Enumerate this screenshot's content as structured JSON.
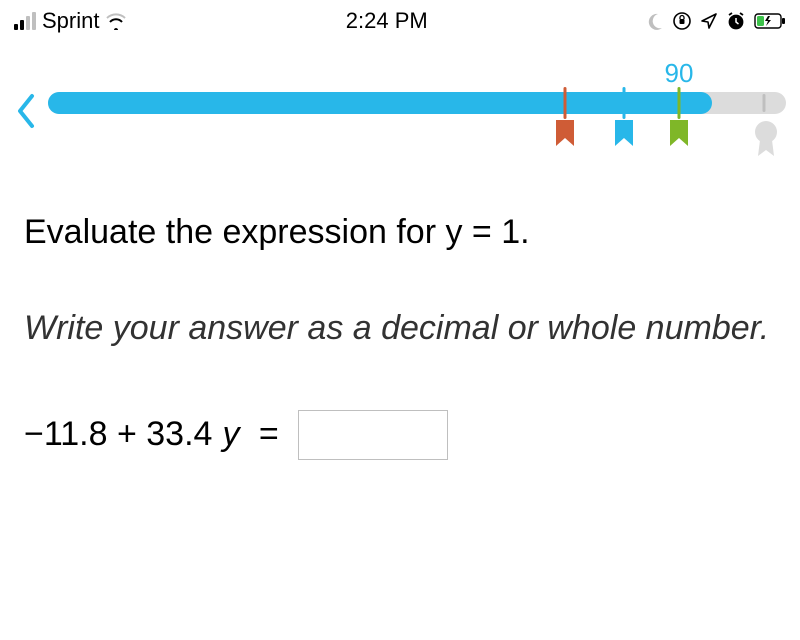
{
  "status_bar": {
    "carrier": "Sprint",
    "time": "2:24 PM",
    "signal_active_bars": 2,
    "signal_total_bars": 4,
    "battery_low": true
  },
  "progress": {
    "score": "90",
    "score_position_pct": 85.5,
    "fill_pct": 90,
    "fill_color": "#28b7e9",
    "track_color": "#dcdcdc",
    "ticks": [
      {
        "position_pct": 70,
        "color": "#cf5c36"
      },
      {
        "position_pct": 78,
        "color": "#28b7e9"
      },
      {
        "position_pct": 85.5,
        "color": "#7fb728"
      }
    ],
    "end_tick_pct": 97,
    "flags": [
      {
        "position_pct": 70,
        "color": "#cf5c36"
      },
      {
        "position_pct": 78,
        "color": "#28b7e9"
      },
      {
        "position_pct": 85.5,
        "color": "#7fb728"
      },
      {
        "position_pct": 97,
        "color": "#dcdcdc",
        "is_badge": true
      }
    ]
  },
  "question": {
    "prompt": "Evaluate the expression for y = 1.",
    "instruction": "Write your answer as a decimal or whole number.",
    "expression_prefix": "−11.8 + 33.4",
    "expression_var": "y",
    "expression_suffix": " = ",
    "answer_value": ""
  },
  "colors": {
    "accent": "#28b7e9",
    "text": "#000000",
    "muted": "#bfbfbf"
  }
}
